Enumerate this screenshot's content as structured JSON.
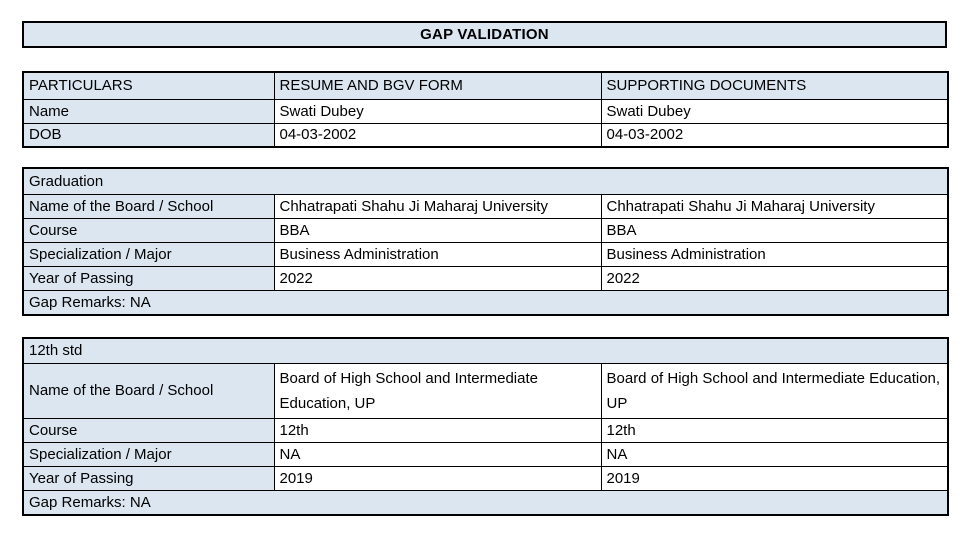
{
  "title": "GAP VALIDATION",
  "colors": {
    "header_fill": "#dce6f1",
    "border": "#000000",
    "text": "#000000",
    "page_background": "#ffffff"
  },
  "columns": [
    "PARTICULARS",
    "RESUME AND BGV FORM",
    "SUPPORTING DOCUMENTS"
  ],
  "personal": {
    "rows": [
      {
        "label": "Name",
        "resume": "Swati Dubey",
        "supporting": "Swati Dubey"
      },
      {
        "label": "DOB",
        "resume": "04-03-2002",
        "supporting": "04-03-2002"
      }
    ]
  },
  "sections": [
    {
      "heading": "Graduation",
      "rows": [
        {
          "label": "Name of the Board / School",
          "resume": "Chhatrapati Shahu Ji Maharaj University",
          "supporting": "Chhatrapati Shahu Ji Maharaj University"
        },
        {
          "label": "Course",
          "resume": "BBA",
          "supporting": "BBA"
        },
        {
          "label": "Specialization / Major",
          "resume": "Business Administration",
          "supporting": "Business Administration"
        },
        {
          "label": "Year of Passing",
          "resume": "2022",
          "supporting": "2022"
        }
      ],
      "gap_remarks": "Gap Remarks: NA"
    },
    {
      "heading": "12th std",
      "rows": [
        {
          "label": "Name of the Board / School",
          "resume": "Board of High School and Intermediate Education, UP",
          "supporting": "Board of High School and Intermediate Education, UP"
        },
        {
          "label": "Course",
          "resume": "12th",
          "supporting": "12th"
        },
        {
          "label": "Specialization / Major",
          "resume": "NA",
          "supporting": "NA"
        },
        {
          "label": "Year of Passing",
          "resume": "2019",
          "supporting": "2019"
        }
      ],
      "gap_remarks": "Gap Remarks: NA"
    }
  ]
}
